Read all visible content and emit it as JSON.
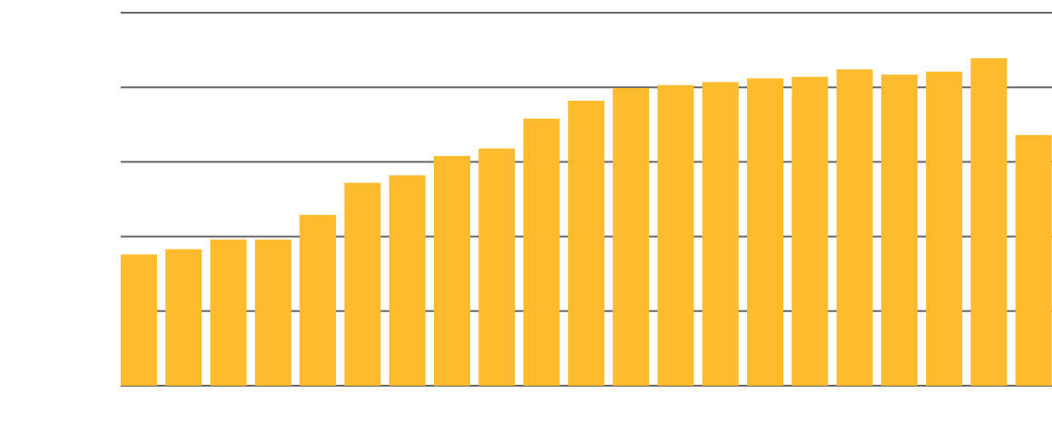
{
  "chart_data": {
    "type": "bar",
    "title": "",
    "xlabel": "",
    "ylabel": "",
    "values": [
      1.76,
      1.83,
      1.96,
      1.96,
      2.29,
      2.72,
      2.82,
      3.08,
      3.18,
      3.58,
      3.82,
      3.99,
      4.03,
      4.07,
      4.12,
      4.14,
      4.24,
      4.17,
      4.21,
      4.39,
      3.36
    ],
    "ylim": [
      0,
      5
    ],
    "grid": true,
    "bar_color": "#FDBB2D",
    "grid_color": "#666666"
  }
}
